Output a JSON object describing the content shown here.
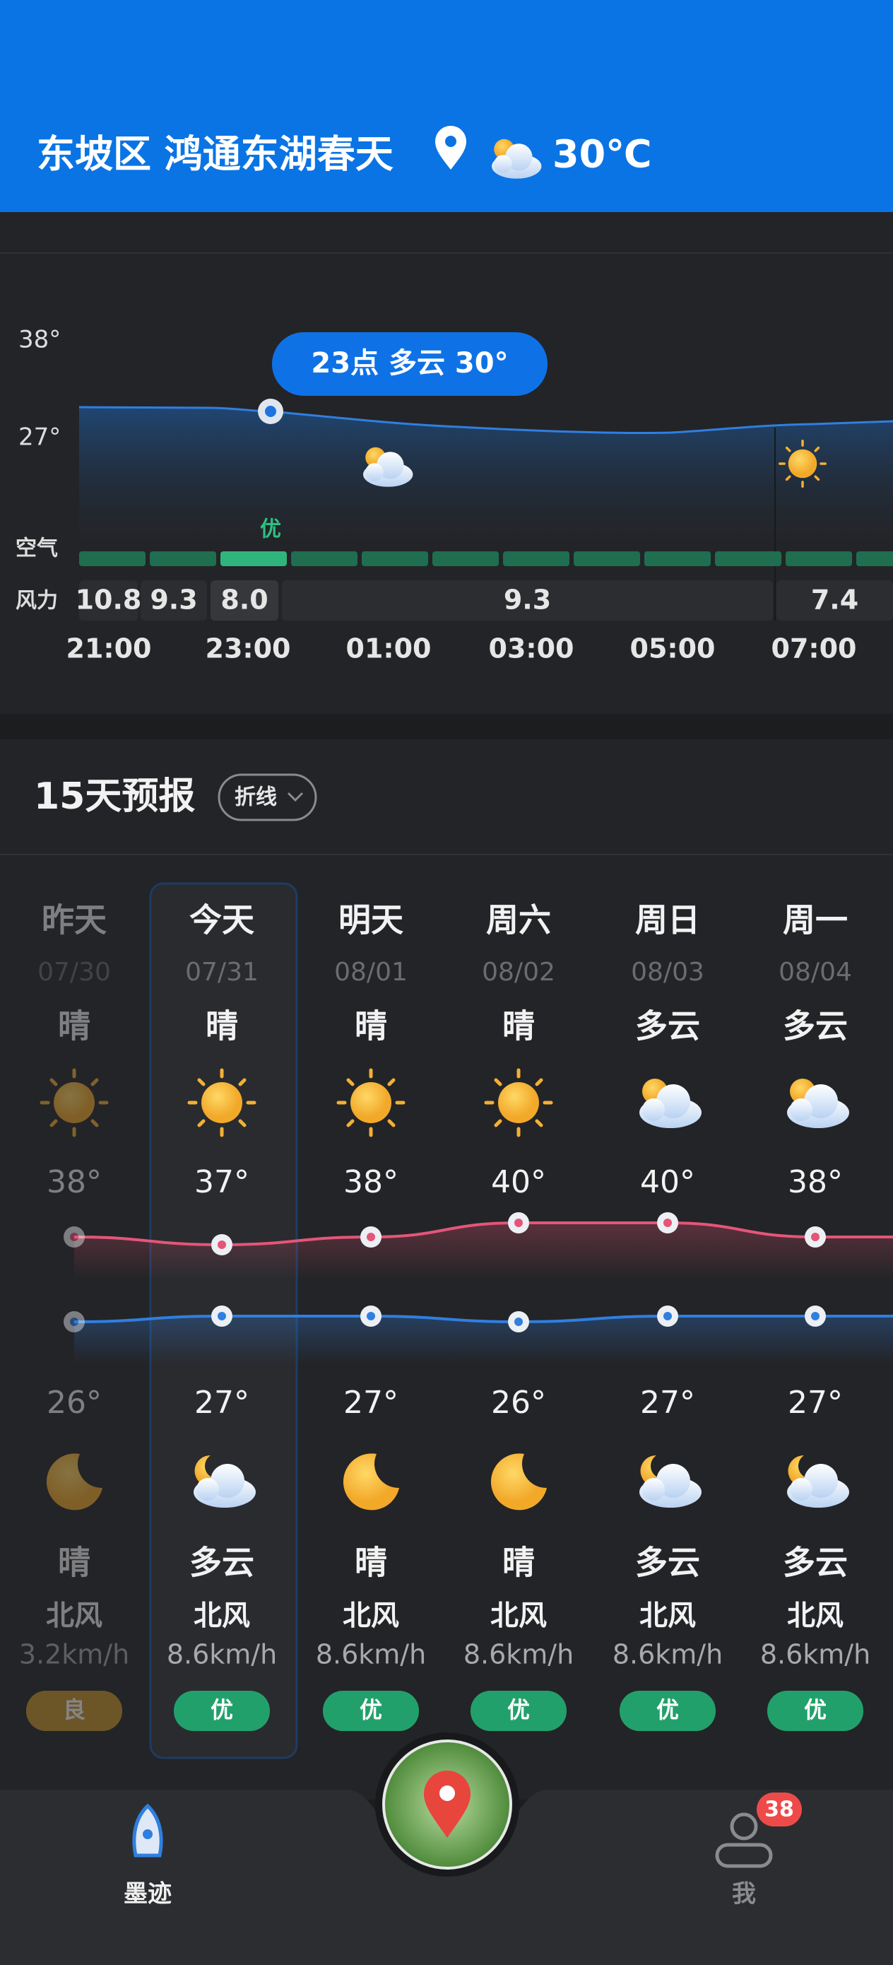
{
  "header": {
    "location": "东坡区 鸿通东湖春天",
    "temperature": "30℃"
  },
  "hourly": {
    "y_labels": [
      "38°",
      "27°"
    ],
    "tooltip": "23点 多云 30°",
    "air_label": "空气",
    "air_quality": "优",
    "wind_label": "风力",
    "wind": [
      "10.8",
      "9.3",
      "8.0",
      "9.3",
      "7.4"
    ],
    "times": [
      "21:00",
      "23:00",
      "01:00",
      "03:00",
      "05:00",
      "07:00"
    ]
  },
  "forecast": {
    "title": "15天预报",
    "mode": "折线",
    "days": [
      {
        "day": "昨天",
        "date": "07/30",
        "day_weather": "晴",
        "high": "38°",
        "low": "26°",
        "night_weather": "晴",
        "wind_dir": "北风",
        "wind_speed": "3.2km/h",
        "aqi": "良"
      },
      {
        "day": "今天",
        "date": "07/31",
        "day_weather": "晴",
        "high": "37°",
        "low": "27°",
        "night_weather": "多云",
        "wind_dir": "北风",
        "wind_speed": "8.6km/h",
        "aqi": "优"
      },
      {
        "day": "明天",
        "date": "08/01",
        "day_weather": "晴",
        "high": "38°",
        "low": "27°",
        "night_weather": "晴",
        "wind_dir": "北风",
        "wind_speed": "8.6km/h",
        "aqi": "优"
      },
      {
        "day": "周六",
        "date": "08/02",
        "day_weather": "晴",
        "high": "40°",
        "low": "26°",
        "night_weather": "晴",
        "wind_dir": "北风",
        "wind_speed": "8.6km/h",
        "aqi": "优"
      },
      {
        "day": "周日",
        "date": "08/03",
        "day_weather": "多云",
        "high": "40°",
        "low": "27°",
        "night_weather": "多云",
        "wind_dir": "北风",
        "wind_speed": "8.6km/h",
        "aqi": "优"
      },
      {
        "day": "周一",
        "date": "08/04",
        "day_weather": "多云",
        "high": "38°",
        "low": "27°",
        "night_weather": "多云",
        "wind_dir": "北风",
        "wind_speed": "8.6km/h",
        "aqi": "优"
      }
    ]
  },
  "nav": {
    "home": "墨迹",
    "me": "我",
    "badge": "38"
  }
}
